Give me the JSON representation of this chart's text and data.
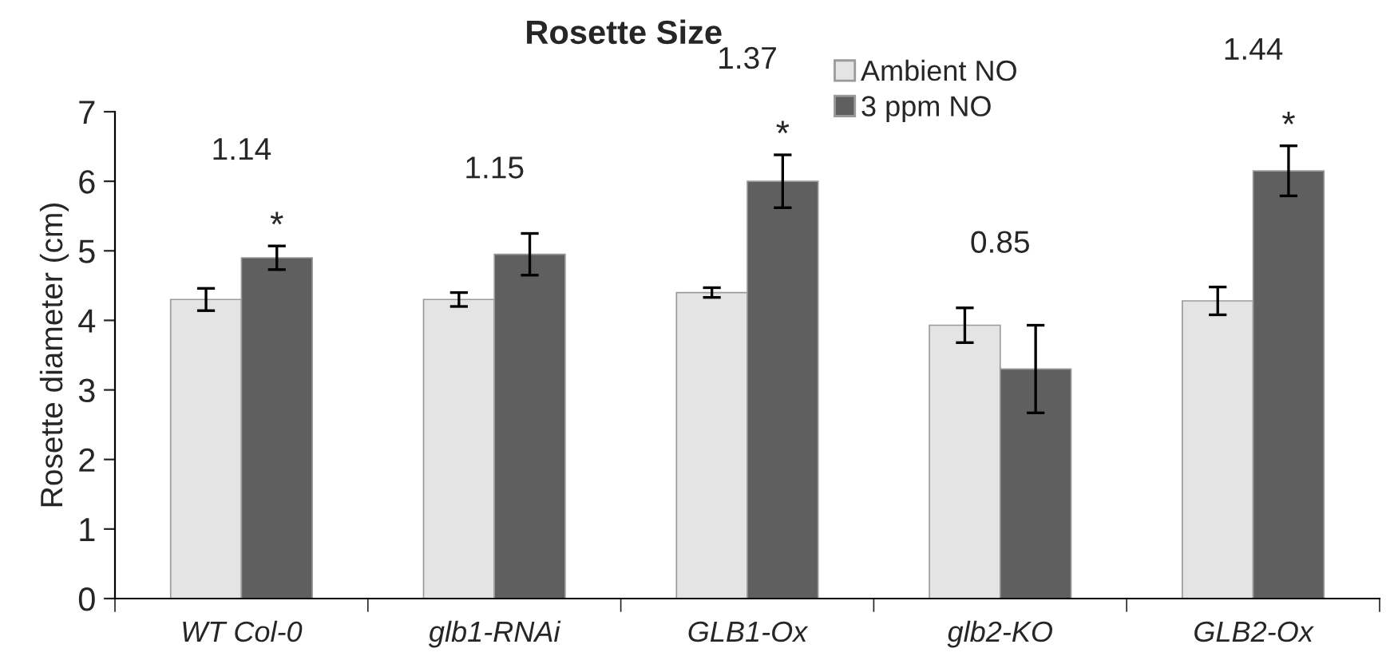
{
  "chart_data": {
    "type": "bar",
    "title": "Rosette Size",
    "ylabel": "Rosette diameter (cm)",
    "categories": [
      "WT Col-0",
      "glb1-RNAi",
      "GLB1-Ox",
      "glb2-KO",
      "GLB2-Ox"
    ],
    "series": [
      {
        "name": "Ambient NO",
        "color": "#e4e4e4",
        "values": [
          4.3,
          4.3,
          4.4,
          3.93,
          4.28
        ],
        "errors": [
          0.16,
          0.1,
          0.07,
          0.25,
          0.2
        ]
      },
      {
        "name": "3 ppm NO",
        "color": "#5f5f5f",
        "values": [
          4.9,
          4.95,
          6.0,
          3.3,
          6.15
        ],
        "errors": [
          0.17,
          0.3,
          0.38,
          0.63,
          0.36
        ],
        "value_labels": [
          "*",
          null,
          "*",
          null,
          "*"
        ]
      }
    ],
    "ylim": [
      0,
      7
    ],
    "yticks": [
      0,
      1,
      2,
      3,
      4,
      5,
      6,
      7
    ],
    "grid": false,
    "legend": "top right",
    "annotations": [
      "1.14",
      "1.15",
      "1.37",
      "0.85",
      "1.44"
    ]
  }
}
